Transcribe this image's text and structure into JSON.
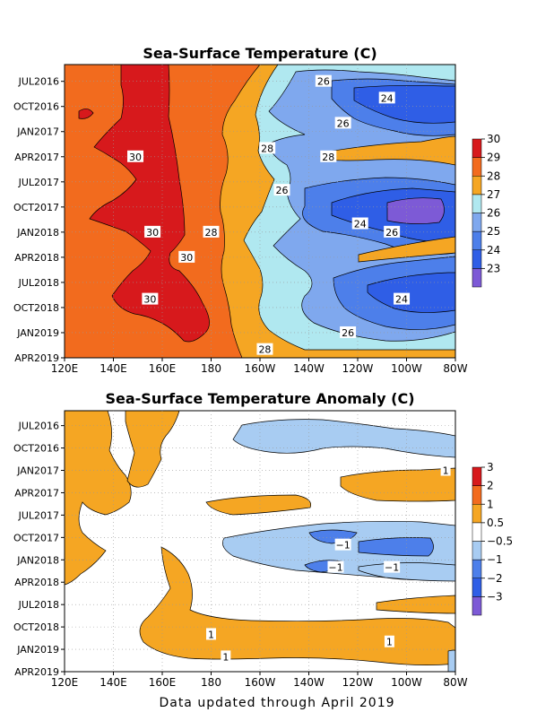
{
  "chart_data": [
    {
      "type": "heatmap",
      "title": "Sea-Surface Temperature (C)",
      "x_tick_labels": [
        "120E",
        "140E",
        "160E",
        "180",
        "160W",
        "140W",
        "120W",
        "100W",
        "80W"
      ],
      "x_values": [
        120,
        140,
        160,
        180,
        200,
        220,
        240,
        260,
        280
      ],
      "y_tick_labels": [
        "JUL2016",
        "OCT2016",
        "JAN2017",
        "APR2017",
        "JUL2017",
        "OCT2017",
        "JAN2018",
        "APR2018",
        "JUL2018",
        "OCT2018",
        "JAN2019",
        "APR2019"
      ],
      "y_range": [
        "2016-05",
        "2019-04"
      ],
      "legend": {
        "placement": "right",
        "levels": [
          23,
          24,
          25,
          26,
          27,
          28,
          29,
          30
        ],
        "labels": [
          "23",
          "24",
          "25",
          "26",
          "27",
          "28",
          "29",
          "30"
        ],
        "colors": [
          "#7d5ad6",
          "#2f5ee6",
          "#4d7fea",
          "#7fa8ee",
          "#b0e8f0",
          "#f5a623",
          "#f26b1e",
          "#d7191c"
        ]
      },
      "contour_labels": [
        {
          "text": "26",
          "lon": 226,
          "date": "2016-07"
        },
        {
          "text": "24",
          "lon": 252,
          "date": "2016-09"
        },
        {
          "text": "26",
          "lon": 234,
          "date": "2016-12"
        },
        {
          "text": "28",
          "lon": 203,
          "date": "2017-03"
        },
        {
          "text": "28",
          "lon": 228,
          "date": "2017-04"
        },
        {
          "text": "30",
          "lon": 149,
          "date": "2017-04"
        },
        {
          "text": "26",
          "lon": 209,
          "date": "2017-08"
        },
        {
          "text": "24",
          "lon": 241,
          "date": "2017-12"
        },
        {
          "text": "26",
          "lon": 254,
          "date": "2018-01"
        },
        {
          "text": "30",
          "lon": 156,
          "date": "2018-01"
        },
        {
          "text": "28",
          "lon": 180,
          "date": "2018-01"
        },
        {
          "text": "30",
          "lon": 170,
          "date": "2018-04"
        },
        {
          "text": "30",
          "lon": 155,
          "date": "2018-09"
        },
        {
          "text": "24",
          "lon": 258,
          "date": "2018-09"
        },
        {
          "text": "26",
          "lon": 236,
          "date": "2019-01"
        },
        {
          "text": "28",
          "lon": 202,
          "date": "2019-03"
        }
      ],
      "grid": true
    },
    {
      "type": "heatmap",
      "title": "Sea-Surface Temperature Anomaly (C)",
      "x_tick_labels": [
        "120E",
        "140E",
        "160E",
        "180",
        "160W",
        "140W",
        "120W",
        "100W",
        "80W"
      ],
      "x_values": [
        120,
        140,
        160,
        180,
        200,
        220,
        240,
        260,
        280
      ],
      "y_tick_labels": [
        "JUL2016",
        "OCT2016",
        "JAN2017",
        "APR2017",
        "JUL2017",
        "OCT2017",
        "JAN2018",
        "APR2018",
        "JUL2018",
        "OCT2018",
        "JAN2019",
        "APR2019"
      ],
      "y_range": [
        "2016-05",
        "2019-04"
      ],
      "legend": {
        "placement": "right",
        "levels": [
          -3,
          -2,
          -1,
          -0.5,
          0.5,
          1,
          2,
          3
        ],
        "labels": [
          "−3",
          "−2",
          "−1",
          "−0.5",
          "0.5",
          "1",
          "2",
          "3"
        ],
        "colors": [
          "#7d5ad6",
          "#2f5ee6",
          "#4d7fea",
          "#a8ccf2",
          "#ffffff",
          "#f5a623",
          "#f26b1e",
          "#d7191c"
        ]
      },
      "contour_labels": [
        {
          "text": "1",
          "lon": 276,
          "date": "2017-01"
        },
        {
          "text": "−1",
          "lon": 234,
          "date": "2017-11"
        },
        {
          "text": "−1",
          "lon": 231,
          "date": "2018-02"
        },
        {
          "text": "−1",
          "lon": 254,
          "date": "2018-02"
        },
        {
          "text": "1",
          "lon": 180,
          "date": "2018-11"
        },
        {
          "text": "1",
          "lon": 253,
          "date": "2018-12"
        },
        {
          "text": "1",
          "lon": 186,
          "date": "2019-02"
        }
      ],
      "grid": true
    }
  ],
  "footer": "Data updated through April 2019"
}
